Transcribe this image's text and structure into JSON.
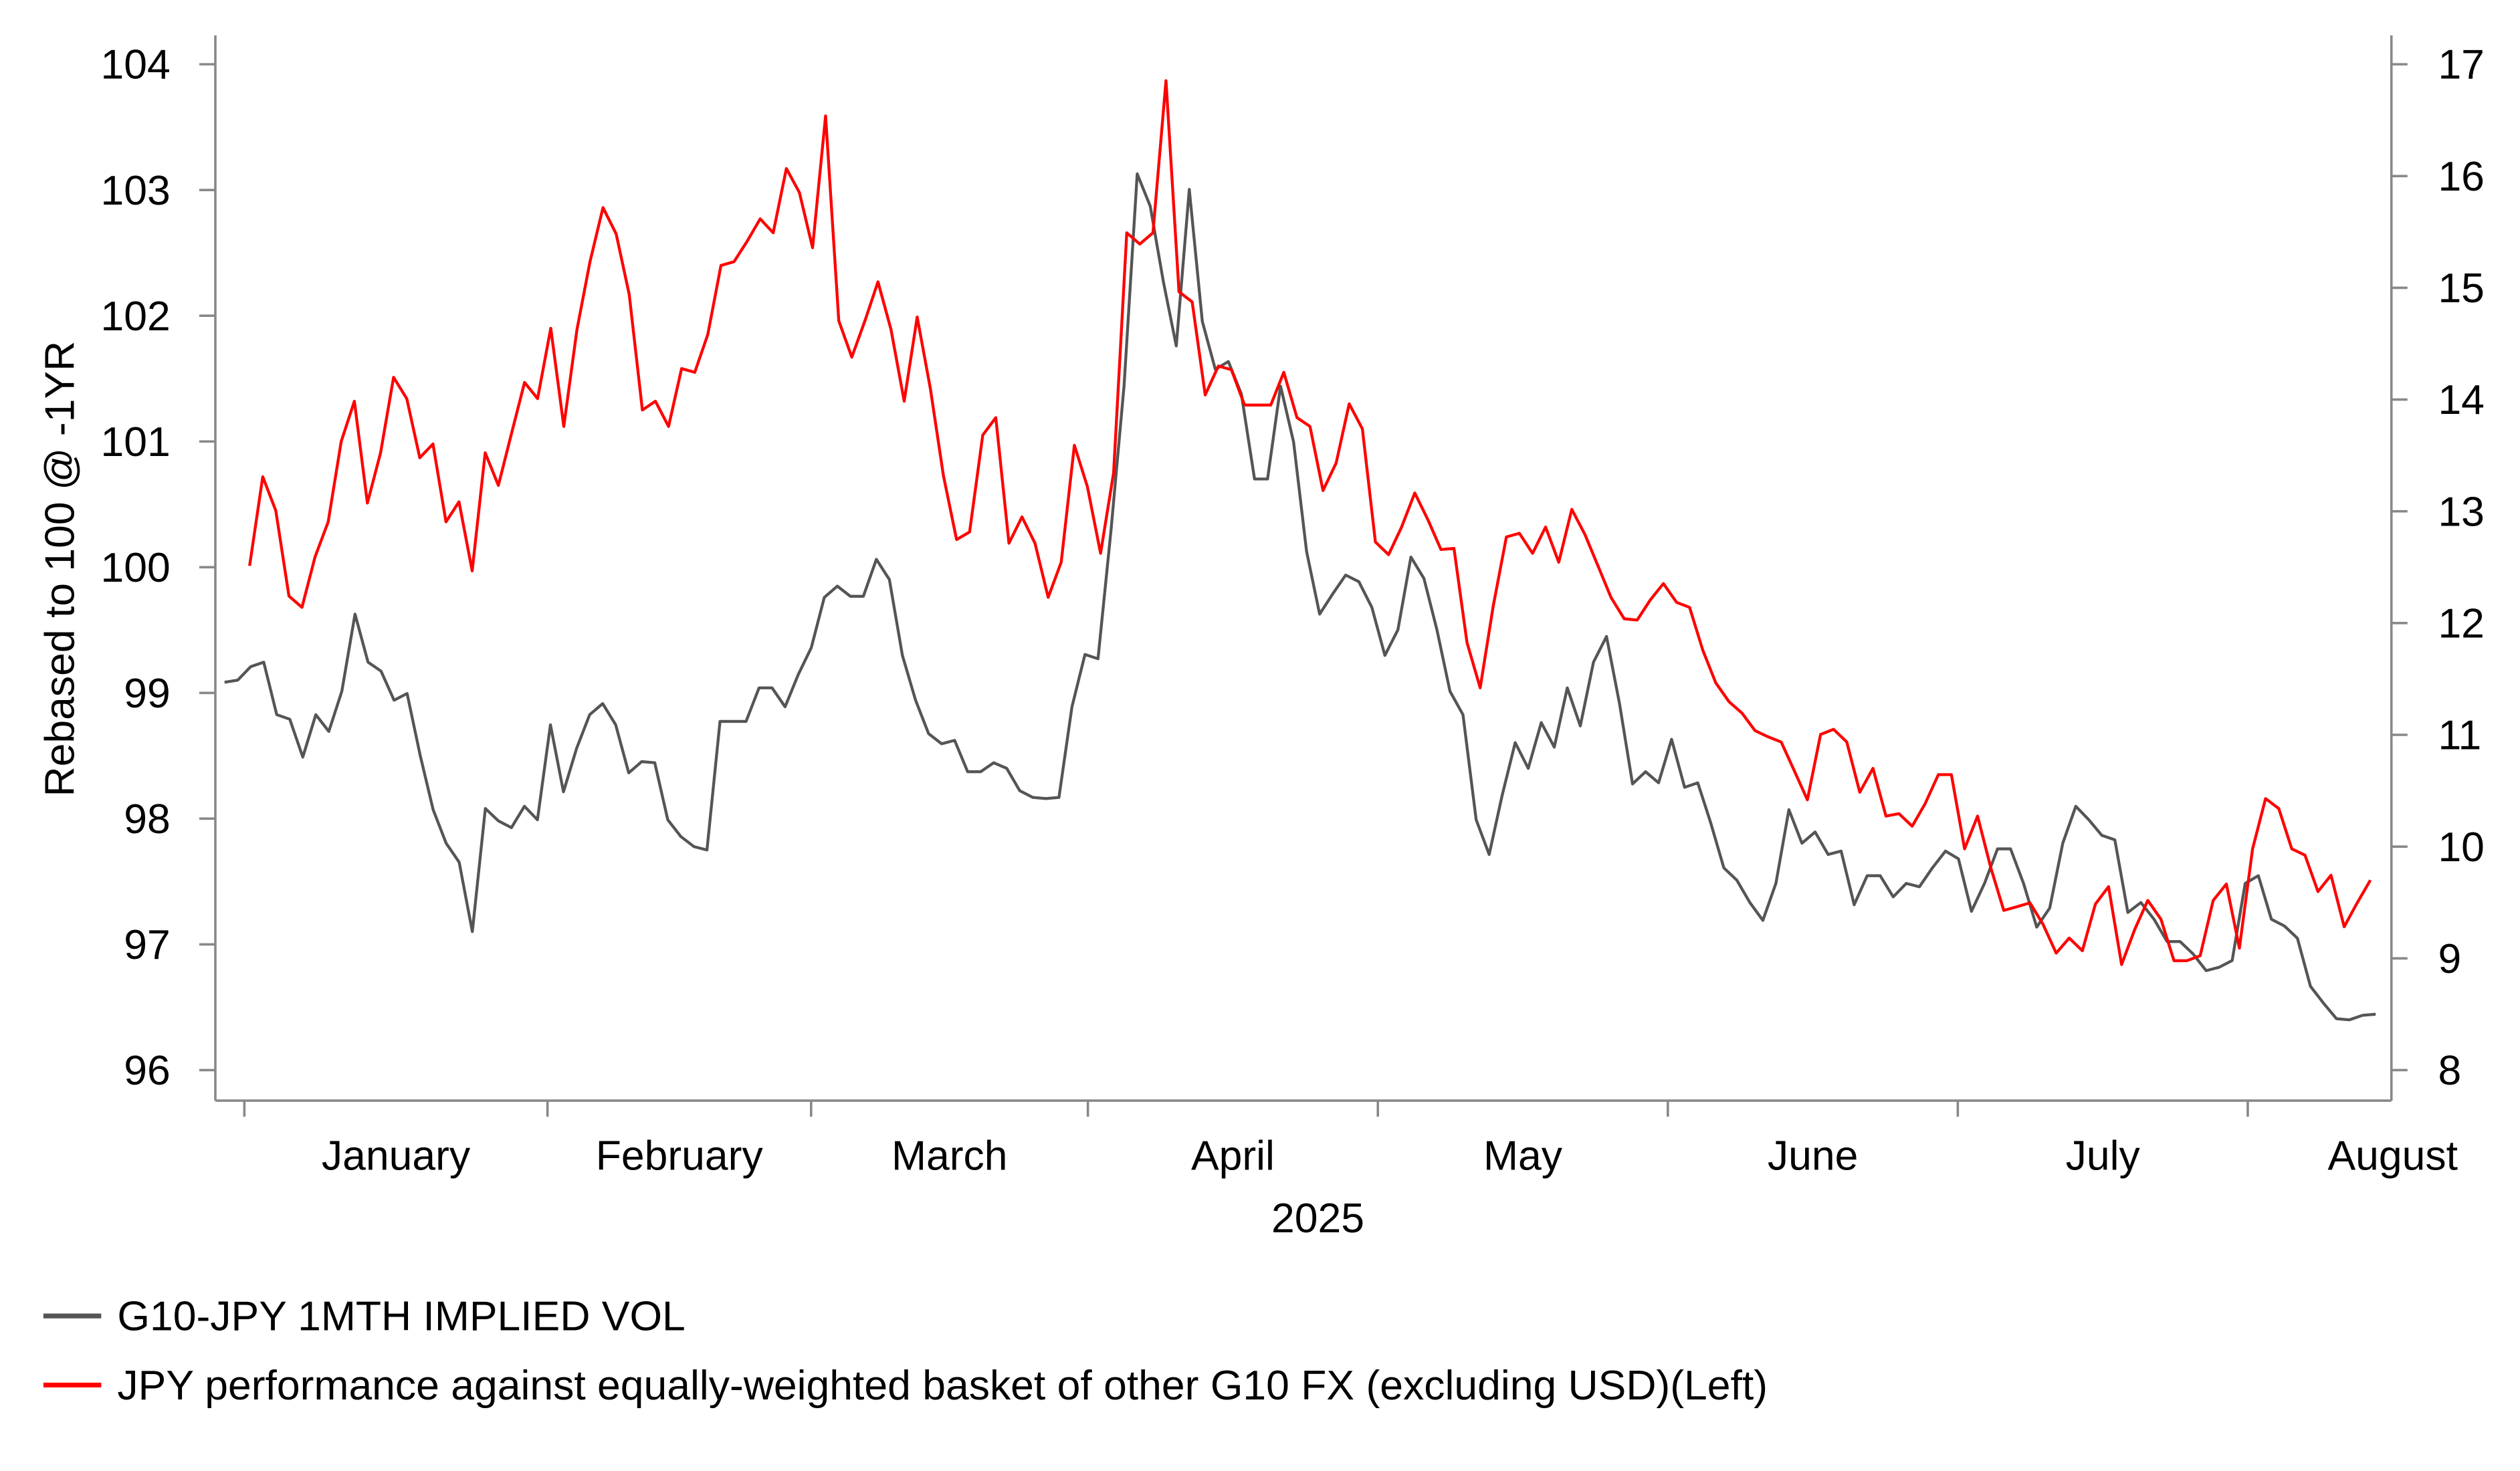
{
  "chart_data": {
    "type": "line",
    "title": "",
    "xlabel": "2025",
    "ylabel_left": "Rebased to 100 @ -1YR",
    "ylabel_right": "",
    "ylim_left": [
      96,
      104
    ],
    "ylim_right": [
      8,
      17
    ],
    "yticks_left": [
      "96",
      "97",
      "98",
      "99",
      "100",
      "101",
      "102",
      "103",
      "104"
    ],
    "yticks_right": [
      "8",
      "9",
      "10",
      "11",
      "12",
      "13",
      "14",
      "15",
      "16",
      "17"
    ],
    "x_unit": "trading days from 1 Jan 2025",
    "xlim": [
      -2.2,
      162.9
    ],
    "month_ticks": [
      0,
      23,
      43,
      64,
      86,
      108,
      130,
      152
    ],
    "month_labels": [
      "January",
      "February",
      "March",
      "April",
      "May",
      "June",
      "July",
      "August"
    ],
    "grid": false,
    "legend_position": "bottom-left",
    "series": [
      {
        "name": "G10-JPY 1MTH IMPLIED VOL",
        "axis": "right",
        "color": "#555555",
        "x_range": [
          -1.5,
          161.7
        ],
        "values": [
          11.47,
          11.49,
          11.61,
          11.65,
          11.18,
          11.14,
          10.8,
          11.18,
          11.03,
          11.39,
          12.08,
          11.65,
          11.57,
          11.31,
          11.37,
          10.82,
          10.33,
          10.03,
          9.86,
          9.24,
          10.34,
          10.23,
          10.17,
          10.36,
          10.24,
          11.09,
          10.49,
          10.88,
          11.18,
          11.28,
          11.09,
          10.66,
          10.76,
          10.75,
          10.24,
          10.09,
          10.0,
          9.97,
          11.12,
          11.12,
          11.12,
          11.42,
          11.42,
          11.25,
          11.54,
          11.78,
          12.23,
          12.33,
          12.24,
          12.24,
          12.57,
          12.39,
          11.71,
          11.31,
          11.01,
          10.92,
          10.95,
          10.67,
          10.67,
          10.75,
          10.7,
          10.5,
          10.44,
          10.43,
          10.44,
          11.25,
          11.72,
          11.68,
          12.83,
          14.12,
          16.02,
          15.73,
          15.06,
          14.48,
          15.88,
          14.7,
          14.27,
          14.34,
          14.05,
          13.29,
          13.29,
          14.12,
          13.62,
          12.64,
          12.08,
          12.26,
          12.43,
          12.37,
          12.14,
          11.71,
          11.94,
          12.59,
          12.4,
          11.94,
          11.39,
          11.18,
          10.24,
          9.93,
          10.46,
          10.93,
          10.7,
          11.11,
          10.89,
          11.42,
          11.08,
          11.65,
          11.88,
          11.28,
          10.56,
          10.67,
          10.57,
          10.96,
          10.53,
          10.57,
          10.21,
          9.81,
          9.7,
          9.5,
          9.34,
          9.67,
          10.33,
          10.03,
          10.13,
          9.93,
          9.96,
          9.48,
          9.74,
          9.74,
          9.55,
          9.67,
          9.64,
          9.81,
          9.96,
          9.89,
          9.42,
          9.67,
          9.98,
          9.98,
          9.67,
          9.28,
          9.45,
          10.03,
          10.36,
          10.24,
          10.1,
          10.06,
          9.41,
          9.5,
          9.35,
          9.15,
          9.15,
          9.04,
          8.89,
          8.92,
          8.98,
          9.67,
          9.74,
          9.35,
          9.29,
          9.18,
          8.75,
          8.6,
          8.46,
          8.45,
          8.49,
          8.5
        ]
      },
      {
        "name": "JPY performance against equally-weighted basket of other G10 FX (excluding USD)(Left)",
        "axis": "left",
        "color": "#ff0000",
        "x_range": [
          0.4,
          161.3
        ],
        "values": [
          100.01,
          100.72,
          100.45,
          99.77,
          99.68,
          100.08,
          100.36,
          101.0,
          101.32,
          100.51,
          100.91,
          101.51,
          101.34,
          100.87,
          100.98,
          100.36,
          100.52,
          99.97,
          100.91,
          100.65,
          101.06,
          101.47,
          101.34,
          101.9,
          101.12,
          101.89,
          102.43,
          102.86,
          102.65,
          102.17,
          101.25,
          101.32,
          101.12,
          101.58,
          101.55,
          101.85,
          102.4,
          102.43,
          102.59,
          102.77,
          102.66,
          103.17,
          102.98,
          102.54,
          103.59,
          101.96,
          101.67,
          101.96,
          102.27,
          101.89,
          101.32,
          101.99,
          101.42,
          100.73,
          100.22,
          100.28,
          101.05,
          101.19,
          100.19,
          100.4,
          100.19,
          99.76,
          100.04,
          100.97,
          100.64,
          100.11,
          100.75,
          102.66,
          102.57,
          102.66,
          103.87,
          102.19,
          102.11,
          101.37,
          101.6,
          101.57,
          101.29,
          101.29,
          101.29,
          101.55,
          101.19,
          101.12,
          100.61,
          100.83,
          101.3,
          101.1,
          100.2,
          100.1,
          100.32,
          100.59,
          100.38,
          100.14,
          100.15,
          99.4,
          99.04,
          99.69,
          100.24,
          100.27,
          100.11,
          100.32,
          100.04,
          100.46,
          100.26,
          100.01,
          99.76,
          99.59,
          99.58,
          99.74,
          99.87,
          99.72,
          99.68,
          99.34,
          99.08,
          98.93,
          98.84,
          98.7,
          98.65,
          98.61,
          98.38,
          98.15,
          98.67,
          98.71,
          98.61,
          98.21,
          98.4,
          98.02,
          98.04,
          97.94,
          98.12,
          98.35,
          98.35,
          97.76,
          98.02,
          97.61,
          97.27,
          97.3,
          97.33,
          97.16,
          96.93,
          97.05,
          96.95,
          97.32,
          97.46,
          96.84,
          97.12,
          97.35,
          97.2,
          96.87,
          96.87,
          96.91,
          97.35,
          97.48,
          96.97,
          97.76,
          98.16,
          98.08,
          97.76,
          97.71,
          97.42,
          97.55,
          97.14,
          97.33,
          97.51
        ]
      }
    ]
  }
}
